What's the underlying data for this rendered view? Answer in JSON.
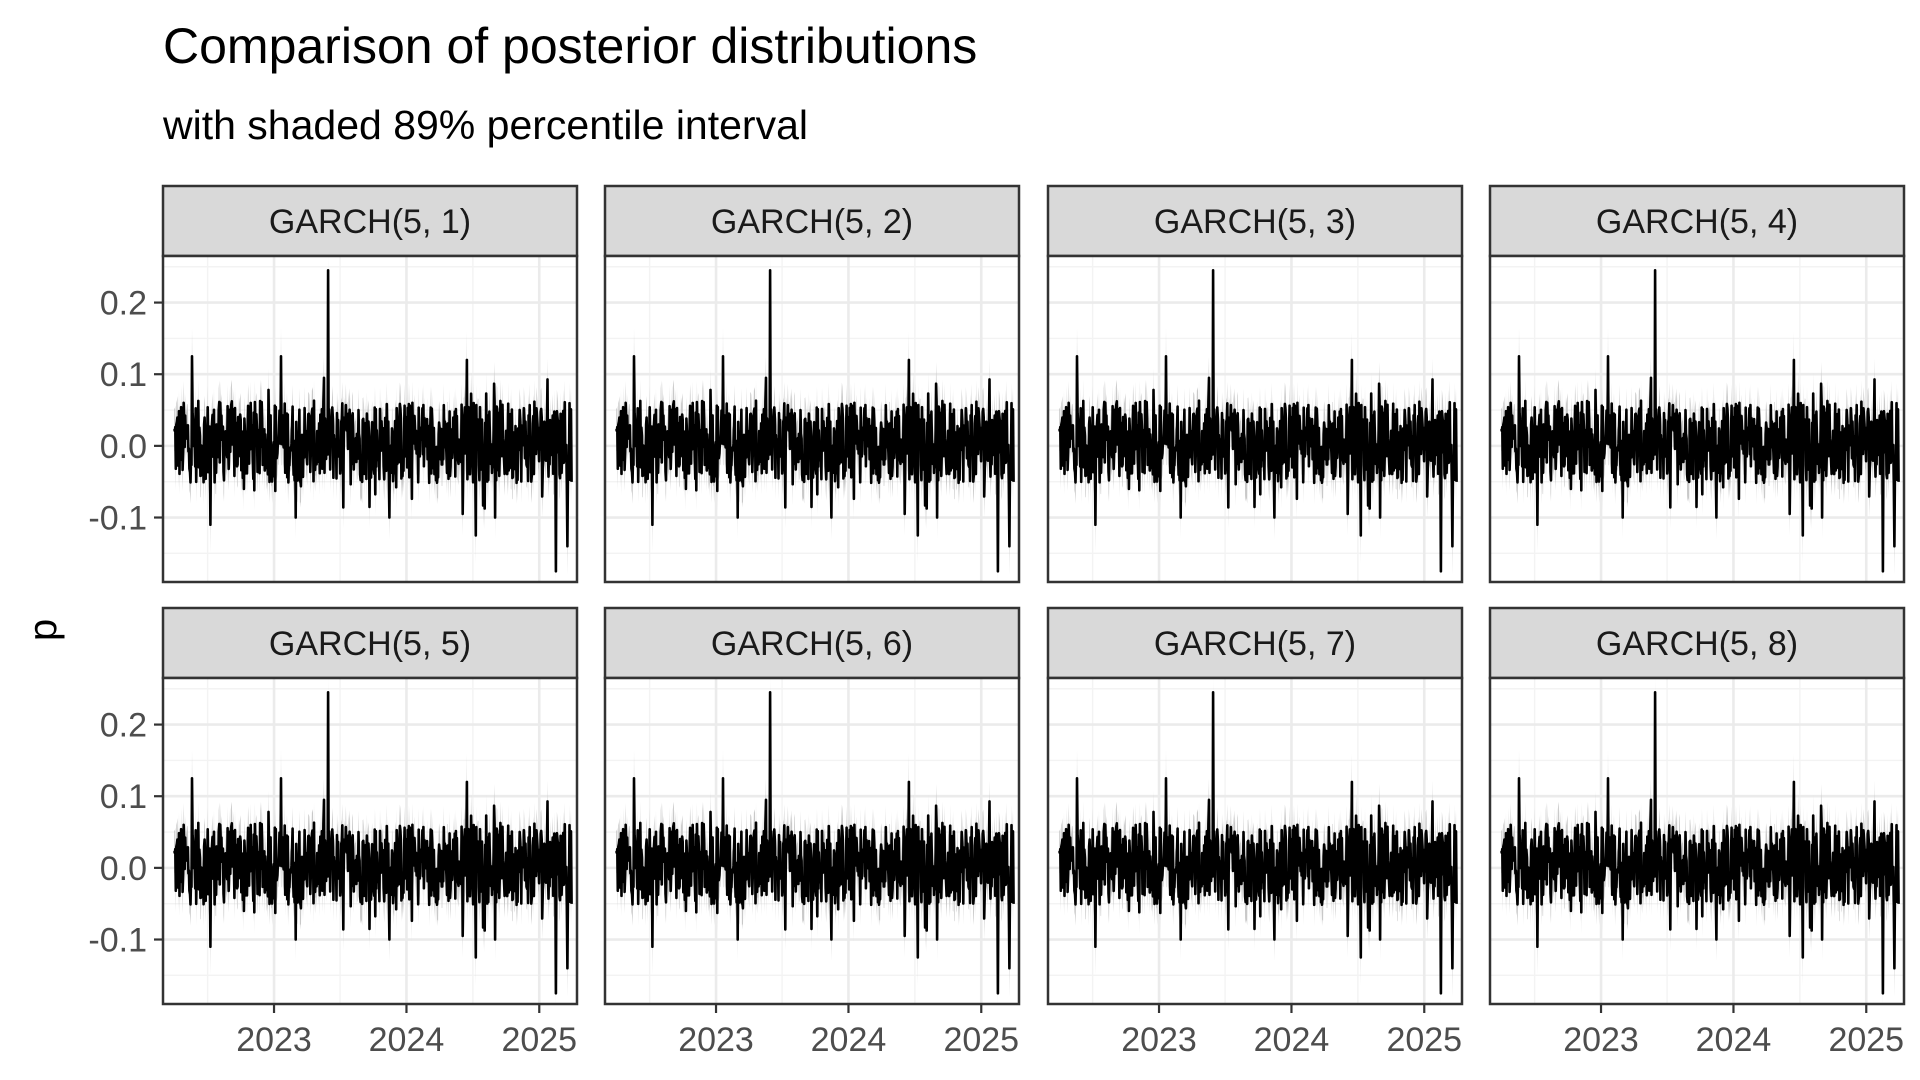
{
  "chart_data": {
    "type": "line",
    "title": "Comparison of posterior distributions",
    "subtitle": "with shaded 89% percentile interval",
    "xlabel": "",
    "ylabel": "p",
    "facets": [
      "GARCH(5, 1)",
      "GARCH(5, 2)",
      "GARCH(5, 3)",
      "GARCH(5, 4)",
      "GARCH(5, 5)",
      "GARCH(5, 6)",
      "GARCH(5, 7)",
      "GARCH(5, 8)"
    ],
    "facet_layout": {
      "rows": 2,
      "cols": 4
    },
    "xlim": [
      "2022-03-01",
      "2025-04-15"
    ],
    "ylim": [
      -0.19,
      0.265
    ],
    "x_ticks": [
      "2023",
      "2024",
      "2025"
    ],
    "y_ticks": [
      -0.1,
      0.0,
      0.1,
      0.2
    ],
    "y_tick_labels": [
      "-0.1",
      "0.0",
      "0.1",
      "0.2"
    ],
    "x_range_data": [
      "2022-04-01",
      "2025-03-31"
    ],
    "interval": "89% percentile interval",
    "grid": true,
    "colors": {
      "line": "#000000",
      "band": "#c8c8c8",
      "strip": "#d9d9d9",
      "grid": "#ebebeb",
      "border": "#333333"
    },
    "notable_points": [
      {
        "x": "2022-05-20",
        "y": 0.125
      },
      {
        "x": "2022-07-10",
        "y": -0.11
      },
      {
        "x": "2023-01-20",
        "y": 0.125
      },
      {
        "x": "2023-03-01",
        "y": -0.1
      },
      {
        "x": "2023-05-30",
        "y": 0.245
      },
      {
        "x": "2023-11-15",
        "y": -0.1
      },
      {
        "x": "2024-06-15",
        "y": 0.12
      },
      {
        "x": "2024-07-10",
        "y": -0.125
      },
      {
        "x": "2024-09-01",
        "y": -0.1
      },
      {
        "x": "2025-02-15",
        "y": -0.175
      },
      {
        "x": "2025-03-20",
        "y": -0.14
      }
    ]
  }
}
